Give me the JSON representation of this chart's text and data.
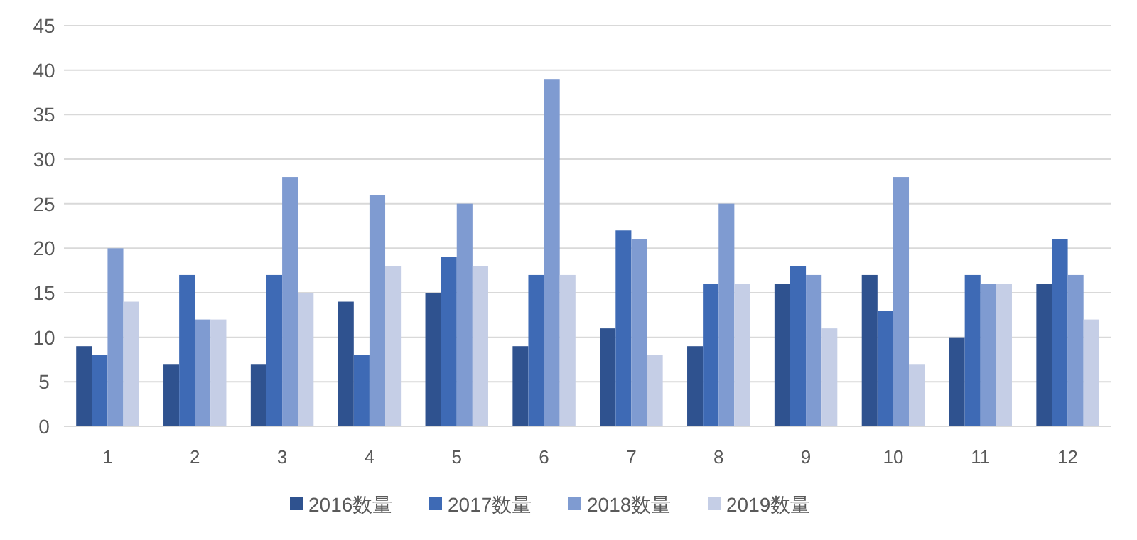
{
  "chart_data": {
    "type": "bar",
    "categories": [
      "1",
      "2",
      "3",
      "4",
      "5",
      "6",
      "7",
      "8",
      "9",
      "10",
      "11",
      "12"
    ],
    "series": [
      {
        "name": "2016数量",
        "color": "#2f528f",
        "values": [
          9,
          7,
          7,
          14,
          15,
          9,
          11,
          9,
          16,
          17,
          10,
          16
        ]
      },
      {
        "name": "2017数量",
        "color": "#3e6ab5",
        "values": [
          8,
          17,
          17,
          8,
          19,
          17,
          22,
          16,
          18,
          13,
          17,
          21
        ]
      },
      {
        "name": "2018数量",
        "color": "#7f9bd1",
        "values": [
          20,
          12,
          28,
          26,
          25,
          39,
          21,
          25,
          17,
          28,
          16,
          17
        ]
      },
      {
        "name": "2019数量",
        "color": "#c5cee6",
        "values": [
          14,
          12,
          15,
          18,
          18,
          17,
          8,
          16,
          11,
          7,
          16,
          12
        ]
      }
    ],
    "ylim": [
      0,
      45
    ],
    "yticks": [
      0,
      5,
      10,
      15,
      20,
      25,
      30,
      35,
      40,
      45
    ],
    "grid": "y",
    "legend": "bottom"
  }
}
